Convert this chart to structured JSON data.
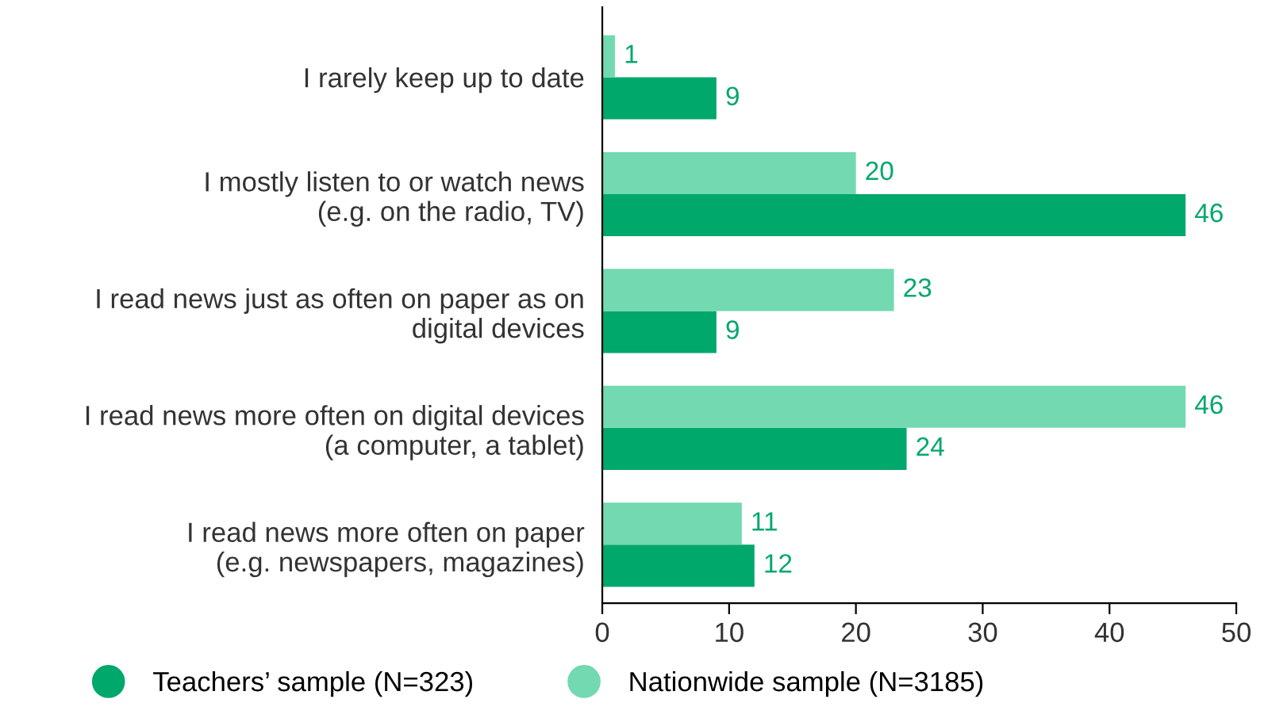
{
  "chart_data": {
    "type": "bar",
    "orientation": "horizontal",
    "categories": [
      "I rarely keep up to date",
      "I mostly listen to or watch news\n(e.g. on the radio, TV)",
      "I read news just as often on paper as on\ndigital devices",
      "I read news more often on digital devices\n(a computer, a tablet)",
      "I read news more often on paper\n(e.g. newspapers, magazines)"
    ],
    "series": [
      {
        "name": "Teachers’ sample (N=323)",
        "color": "#00a86b",
        "values": [
          9,
          46,
          9,
          24,
          12
        ]
      },
      {
        "name": "Nationwide sample (N=3185)",
        "color": "#72d9b0",
        "values": [
          1,
          20,
          23,
          46,
          11
        ]
      }
    ],
    "xlim": [
      0,
      50
    ],
    "xticks": [
      0,
      10,
      20,
      30,
      40,
      50
    ],
    "data_labels": true,
    "legend": "bottom",
    "grid": false
  }
}
